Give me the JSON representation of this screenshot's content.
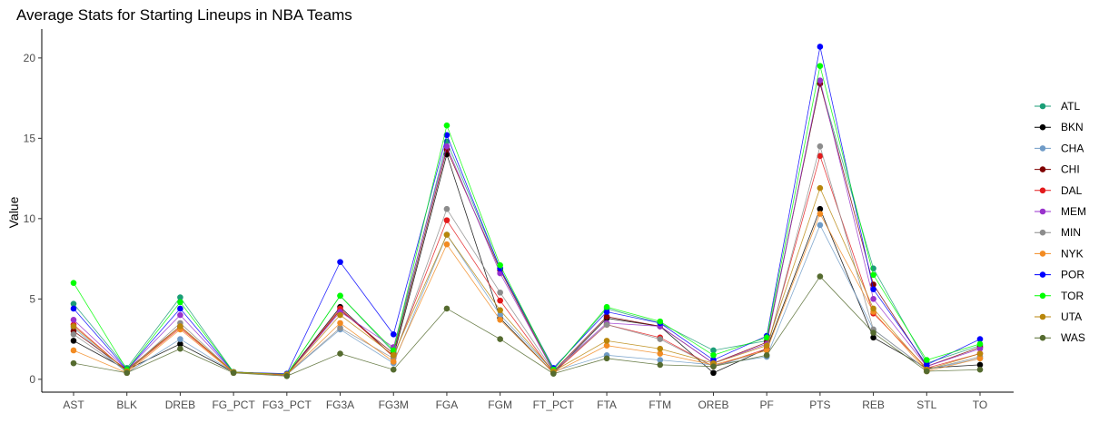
{
  "chart_data": {
    "type": "line",
    "title": "Average Stats for Starting Lineups in NBA Teams",
    "xlabel": "",
    "ylabel": "Value",
    "ylim": [
      -0.8,
      21.8
    ],
    "yticks": [
      0,
      5,
      10,
      15,
      20
    ],
    "grid": false,
    "legend_position": "right",
    "categories": [
      "AST",
      "BLK",
      "DREB",
      "FG_PCT",
      "FG3_PCT",
      "FG3A",
      "FG3M",
      "FGA",
      "FGM",
      "FT_PCT",
      "FTA",
      "FTM",
      "OREB",
      "PF",
      "PTS",
      "REB",
      "STL",
      "TO"
    ],
    "series": [
      {
        "name": "ATL",
        "color": "#1b9e77",
        "values": [
          4.7,
          0.7,
          5.1,
          0.45,
          0.3,
          5.2,
          1.7,
          14.8,
          6.9,
          0.6,
          4.4,
          3.5,
          1.8,
          2.4,
          18.4,
          6.9,
          1.0,
          2.1
        ]
      },
      {
        "name": "BKN",
        "color": "#000000",
        "values": [
          2.4,
          0.6,
          2.2,
          0.45,
          0.3,
          4.5,
          1.4,
          14.0,
          3.8,
          0.4,
          3.8,
          3.3,
          0.4,
          1.9,
          10.6,
          2.6,
          0.7,
          0.9
        ]
      },
      {
        "name": "CHA",
        "color": "#6f9bc7",
        "values": [
          3.2,
          0.4,
          2.5,
          0.45,
          0.3,
          3.1,
          1.0,
          9.0,
          4.0,
          0.5,
          1.5,
          1.2,
          0.9,
          1.4,
          9.6,
          3.1,
          0.6,
          1.3
        ]
      },
      {
        "name": "CHI",
        "color": "#7f0000",
        "values": [
          3.0,
          0.6,
          3.3,
          0.45,
          0.3,
          4.3,
          1.6,
          14.3,
          6.8,
          0.5,
          3.9,
          3.3,
          1.0,
          2.3,
          18.4,
          5.9,
          0.8,
          2.0
        ]
      },
      {
        "name": "DAL",
        "color": "#e31a1c",
        "values": [
          3.4,
          0.5,
          3.2,
          0.45,
          0.25,
          4.4,
          1.4,
          9.9,
          4.9,
          0.4,
          3.4,
          2.6,
          0.8,
          1.9,
          13.9,
          4.1,
          0.7,
          1.6
        ]
      },
      {
        "name": "MEM",
        "color": "#9932cc",
        "values": [
          3.7,
          0.6,
          4.0,
          0.45,
          0.3,
          4.2,
          2.0,
          14.5,
          6.6,
          0.5,
          3.5,
          3.3,
          1.0,
          2.2,
          18.6,
          5.0,
          0.8,
          1.9
        ]
      },
      {
        "name": "MIN",
        "color": "#8c8c8c",
        "values": [
          2.8,
          0.5,
          3.5,
          0.45,
          0.3,
          3.2,
          1.3,
          10.6,
          5.4,
          0.5,
          3.4,
          2.5,
          0.8,
          1.8,
          14.5,
          3.1,
          0.6,
          1.4
        ]
      },
      {
        "name": "NYK",
        "color": "#f28b22",
        "values": [
          1.8,
          0.4,
          3.1,
          0.4,
          0.3,
          3.5,
          1.1,
          8.4,
          3.7,
          0.4,
          2.1,
          1.6,
          0.9,
          1.8,
          10.3,
          4.2,
          0.5,
          1.3
        ]
      },
      {
        "name": "POR",
        "color": "#0000ff",
        "values": [
          4.4,
          0.6,
          4.4,
          0.45,
          0.35,
          7.3,
          2.8,
          15.2,
          6.9,
          0.7,
          4.2,
          3.5,
          1.2,
          2.7,
          20.7,
          5.6,
          0.9,
          2.5
        ]
      },
      {
        "name": "TOR",
        "color": "#00ff00",
        "values": [
          6.0,
          0.6,
          4.8,
          0.45,
          0.3,
          5.2,
          1.8,
          15.8,
          7.1,
          0.6,
          4.5,
          3.6,
          1.5,
          2.6,
          19.5,
          6.5,
          1.2,
          2.2
        ]
      },
      {
        "name": "UTA",
        "color": "#b8860b",
        "values": [
          3.3,
          0.5,
          3.3,
          0.45,
          0.3,
          4.0,
          1.5,
          9.0,
          4.3,
          0.5,
          2.4,
          1.9,
          1.0,
          2.1,
          11.9,
          4.4,
          0.6,
          1.6
        ]
      },
      {
        "name": "WAS",
        "color": "#556b2f",
        "values": [
          1.0,
          0.4,
          1.9,
          0.4,
          0.2,
          1.6,
          0.6,
          4.4,
          2.5,
          0.35,
          1.3,
          0.9,
          0.8,
          1.5,
          6.4,
          2.9,
          0.5,
          0.6
        ]
      }
    ]
  }
}
